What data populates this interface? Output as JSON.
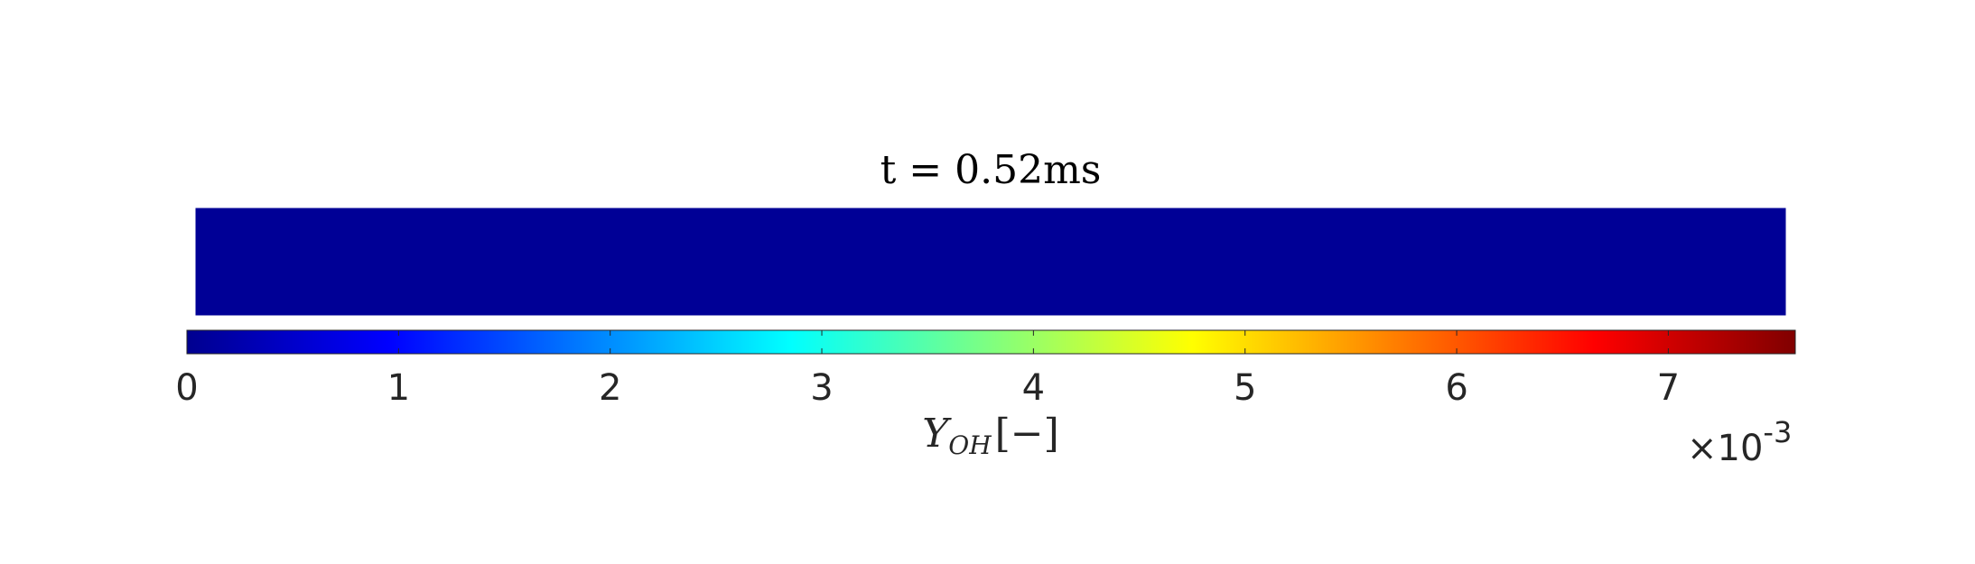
{
  "chart_data": {
    "type": "heatmap",
    "title": "t = 0.52ms",
    "field": {
      "fill_value": 0.0,
      "fill_color": "#000096"
    },
    "colorbar": {
      "colormap": "jet",
      "label": "Y_OH [−]",
      "label_main": "Y",
      "label_sub": "OH",
      "label_unit": "[−]",
      "range": [
        0,
        7.6
      ],
      "ticks": [
        0,
        1,
        2,
        3,
        4,
        5,
        6,
        7
      ],
      "tick_labels": [
        "0",
        "1",
        "2",
        "3",
        "4",
        "5",
        "6",
        "7"
      ],
      "exponent_label": "×10",
      "exponent_power": "-3",
      "placement": "bottom"
    }
  }
}
